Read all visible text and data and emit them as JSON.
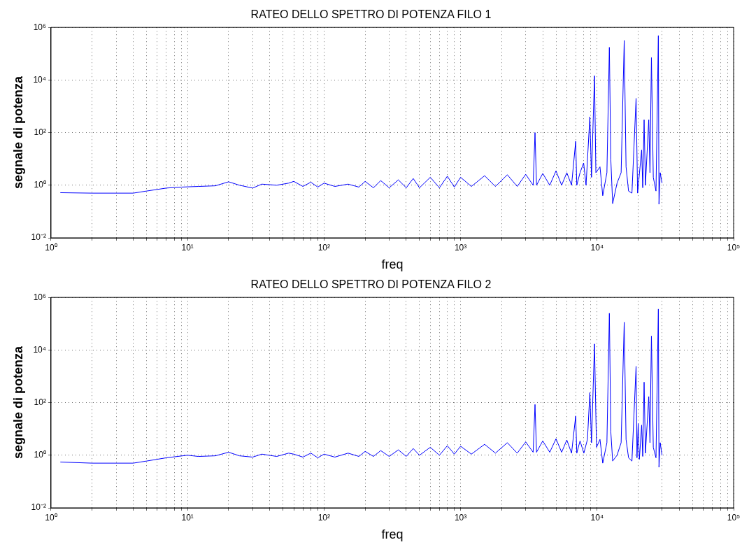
{
  "chart_data": [
    {
      "type": "line",
      "title": "RATEO DELLO SPETTRO DI POTENZA FILO 1",
      "xlabel": "freq",
      "ylabel": "segnale di potenza",
      "log": "xy",
      "grid": true,
      "legend": false,
      "marker": "none",
      "line_style": "solid",
      "xlim": [
        1,
        100000
      ],
      "ylim": [
        0.01,
        1000000
      ],
      "xticks": [
        {
          "value": 1,
          "label": "10⁰"
        },
        {
          "value": 2,
          "label": null
        },
        {
          "value": 3,
          "label": null
        },
        {
          "value": 4,
          "label": null
        },
        {
          "value": 5,
          "label": null
        },
        {
          "value": 6,
          "label": null
        },
        {
          "value": 7,
          "label": null
        },
        {
          "value": 8,
          "label": null
        },
        {
          "value": 9,
          "label": null
        },
        {
          "value": 10,
          "label": "10¹"
        },
        {
          "value": 20,
          "label": null
        },
        {
          "value": 30,
          "label": null
        },
        {
          "value": 40,
          "label": null
        },
        {
          "value": 50,
          "label": null
        },
        {
          "value": 60,
          "label": null
        },
        {
          "value": 70,
          "label": null
        },
        {
          "value": 80,
          "label": null
        },
        {
          "value": 90,
          "label": null
        },
        {
          "value": 100,
          "label": "10²"
        },
        {
          "value": 200,
          "label": null
        },
        {
          "value": 300,
          "label": null
        },
        {
          "value": 400,
          "label": null
        },
        {
          "value": 500,
          "label": null
        },
        {
          "value": 600,
          "label": null
        },
        {
          "value": 700,
          "label": null
        },
        {
          "value": 800,
          "label": null
        },
        {
          "value": 900,
          "label": null
        },
        {
          "value": 1000,
          "label": "10³"
        },
        {
          "value": 2000,
          "label": null
        },
        {
          "value": 3000,
          "label": null
        },
        {
          "value": 4000,
          "label": null
        },
        {
          "value": 5000,
          "label": null
        },
        {
          "value": 6000,
          "label": null
        },
        {
          "value": 7000,
          "label": null
        },
        {
          "value": 8000,
          "label": null
        },
        {
          "value": 9000,
          "label": null
        },
        {
          "value": 10000,
          "label": "10⁴"
        },
        {
          "value": 20000,
          "label": null
        },
        {
          "value": 30000,
          "label": null
        },
        {
          "value": 40000,
          "label": null
        },
        {
          "value": 50000,
          "label": null
        },
        {
          "value": 60000,
          "label": null
        },
        {
          "value": 70000,
          "label": null
        },
        {
          "value": 80000,
          "label": null
        },
        {
          "value": 90000,
          "label": null
        },
        {
          "value": 100000,
          "label": "10⁵"
        }
      ],
      "yticks": [
        {
          "value": 0.01,
          "label": "10⁻²"
        },
        {
          "value": 1,
          "label": "10⁰"
        },
        {
          "value": 100,
          "label": "10²"
        },
        {
          "value": 10000,
          "label": "10⁴"
        },
        {
          "value": 1000000,
          "label": "10⁶"
        }
      ],
      "series": [
        {
          "color": "#0000ff",
          "x": [
            1.17,
            2,
            4,
            5,
            7,
            9,
            12,
            16,
            20,
            24,
            30,
            35,
            45,
            55,
            60,
            70,
            80,
            90,
            100,
            120,
            150,
            180,
            200,
            230,
            260,
            300,
            350,
            400,
            450,
            500,
            600,
            700,
            800,
            900,
            1000,
            1200,
            1500,
            1800,
            2200,
            2600,
            3000,
            3400,
            3510,
            3600,
            4000,
            4500,
            5000,
            5500,
            6000,
            6500,
            6970,
            7100,
            7500,
            7970,
            8300,
            8850,
            9100,
            9570,
            9800,
            10500,
            11000,
            11800,
            12300,
            12600,
            13000,
            14000,
            15000,
            15800,
            16300,
            17000,
            18000,
            19300,
            19800,
            21200,
            21600,
            22100,
            22600,
            23900,
            24400,
            25000,
            25800,
            27000,
            28100,
            28400,
            29000,
            29900
          ],
          "values": [
            0.52,
            0.5,
            0.5,
            0.6,
            0.78,
            0.85,
            0.9,
            0.95,
            1.35,
            1.0,
            0.78,
            1.1,
            1.0,
            1.2,
            1.4,
            0.9,
            1.3,
            0.85,
            1.2,
            0.9,
            1.1,
            0.85,
            1.4,
            0.8,
            1.5,
            0.8,
            1.6,
            0.8,
            1.8,
            0.8,
            2.0,
            0.8,
            2.2,
            0.85,
            2.0,
            0.9,
            2.3,
            0.9,
            2.5,
            0.9,
            2.6,
            1.0,
            100,
            1.0,
            2.8,
            1.0,
            3.5,
            1.0,
            3.0,
            1.0,
            47,
            1.0,
            3.0,
            7,
            1.0,
            400,
            2,
            14500,
            3,
            5,
            0.4,
            3,
            175000,
            10,
            0.2,
            1.2,
            3,
            320000,
            5,
            0.6,
            0.5,
            2000,
            0.5,
            22,
            0.8,
            310,
            1,
            310,
            3,
            71000,
            2,
            0.6,
            490000,
            0.19,
            3,
            1.2
          ]
        }
      ]
    },
    {
      "type": "line",
      "title": "RATEO DELLO SPETTRO DI POTENZA FILO 2",
      "xlabel": "freq",
      "ylabel": "segnale di potenza",
      "log": "xy",
      "grid": true,
      "legend": false,
      "marker": "none",
      "line_style": "solid",
      "xlim": [
        1,
        100000
      ],
      "ylim": [
        0.01,
        1000000
      ],
      "xticks": [
        {
          "value": 1,
          "label": "10⁰"
        },
        {
          "value": 2,
          "label": null
        },
        {
          "value": 3,
          "label": null
        },
        {
          "value": 4,
          "label": null
        },
        {
          "value": 5,
          "label": null
        },
        {
          "value": 6,
          "label": null
        },
        {
          "value": 7,
          "label": null
        },
        {
          "value": 8,
          "label": null
        },
        {
          "value": 9,
          "label": null
        },
        {
          "value": 10,
          "label": "10¹"
        },
        {
          "value": 20,
          "label": null
        },
        {
          "value": 30,
          "label": null
        },
        {
          "value": 40,
          "label": null
        },
        {
          "value": 50,
          "label": null
        },
        {
          "value": 60,
          "label": null
        },
        {
          "value": 70,
          "label": null
        },
        {
          "value": 80,
          "label": null
        },
        {
          "value": 90,
          "label": null
        },
        {
          "value": 100,
          "label": "10²"
        },
        {
          "value": 200,
          "label": null
        },
        {
          "value": 300,
          "label": null
        },
        {
          "value": 400,
          "label": null
        },
        {
          "value": 500,
          "label": null
        },
        {
          "value": 600,
          "label": null
        },
        {
          "value": 700,
          "label": null
        },
        {
          "value": 800,
          "label": null
        },
        {
          "value": 900,
          "label": null
        },
        {
          "value": 1000,
          "label": "10³"
        },
        {
          "value": 2000,
          "label": null
        },
        {
          "value": 3000,
          "label": null
        },
        {
          "value": 4000,
          "label": null
        },
        {
          "value": 5000,
          "label": null
        },
        {
          "value": 6000,
          "label": null
        },
        {
          "value": 7000,
          "label": null
        },
        {
          "value": 8000,
          "label": null
        },
        {
          "value": 9000,
          "label": null
        },
        {
          "value": 10000,
          "label": "10⁴"
        },
        {
          "value": 20000,
          "label": null
        },
        {
          "value": 30000,
          "label": null
        },
        {
          "value": 40000,
          "label": null
        },
        {
          "value": 50000,
          "label": null
        },
        {
          "value": 60000,
          "label": null
        },
        {
          "value": 70000,
          "label": null
        },
        {
          "value": 80000,
          "label": null
        },
        {
          "value": 90000,
          "label": null
        },
        {
          "value": 100000,
          "label": "10⁵"
        }
      ],
      "yticks": [
        {
          "value": 0.01,
          "label": "10⁻²"
        },
        {
          "value": 1,
          "label": "10⁰"
        },
        {
          "value": 100,
          "label": "10²"
        },
        {
          "value": 10000,
          "label": "10⁴"
        },
        {
          "value": 1000000,
          "label": "10⁶"
        }
      ],
      "series": [
        {
          "color": "#0000ff",
          "x": [
            1.17,
            2,
            4,
            5,
            7,
            10,
            12,
            16,
            20,
            24,
            30,
            35,
            45,
            55,
            60,
            70,
            80,
            90,
            100,
            120,
            150,
            180,
            200,
            230,
            260,
            300,
            350,
            400,
            450,
            500,
            600,
            700,
            800,
            900,
            1000,
            1200,
            1500,
            1800,
            2200,
            2600,
            3000,
            3400,
            3510,
            3600,
            4000,
            4500,
            5000,
            5500,
            6000,
            6500,
            6970,
            7100,
            7500,
            8000,
            8500,
            8850,
            9100,
            9570,
            9900,
            10500,
            11000,
            11800,
            12300,
            12600,
            13000,
            14000,
            15000,
            15800,
            16300,
            17000,
            18000,
            19300,
            19600,
            20000,
            20400,
            21200,
            21600,
            22100,
            22600,
            23900,
            24400,
            25000,
            25800,
            27000,
            28100,
            28400,
            29000,
            29900
          ],
          "values": [
            0.55,
            0.5,
            0.5,
            0.6,
            0.8,
            1.0,
            0.9,
            0.95,
            1.3,
            0.95,
            0.85,
            1.1,
            0.9,
            1.2,
            1.1,
            0.85,
            1.2,
            0.8,
            1.1,
            0.85,
            1.2,
            0.9,
            1.4,
            0.9,
            1.5,
            0.9,
            1.6,
            0.9,
            1.8,
            1.0,
            2.0,
            1.0,
            2.3,
            1.1,
            2.2,
            1.1,
            2.6,
            1.2,
            3.0,
            1.2,
            3.2,
            1.3,
            85,
            1.3,
            3.5,
            1.3,
            4.2,
            1.3,
            3.8,
            1.2,
            31,
            1.2,
            3.5,
            1.2,
            4,
            240,
            3,
            17000,
            2,
            4,
            0.5,
            3,
            250000,
            8,
            0.6,
            1.0,
            3,
            114000,
            4,
            0.8,
            0.6,
            2400,
            0.8,
            16,
            0.7,
            14,
            0.9,
            600,
            1.2,
            170,
            3,
            34000,
            2,
            0.8,
            360000,
            0.35,
            3,
            1.0
          ]
        }
      ]
    }
  ]
}
